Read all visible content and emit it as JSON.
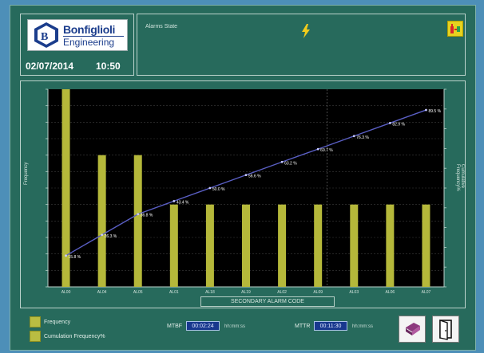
{
  "header": {
    "brand_name": "Bonfiglioli",
    "brand_sub": "Engineering",
    "date": "02/07/2014",
    "time": "10:50",
    "alarm_label": "Alarms State"
  },
  "chart_data": {
    "type": "bar",
    "title": "",
    "xlabel": "SECONDARY ALARM CODE",
    "ylabel": "Frequency",
    "y2label": "Cumulative Frequency%",
    "categories": [
      "AL00",
      "AL04",
      "AL05",
      "AL01",
      "AL18",
      "AL19",
      "AL02",
      "AL09",
      "AL03",
      "AL06",
      "AL07"
    ],
    "values": [
      12,
      8,
      8,
      5,
      5,
      5,
      5,
      5,
      5,
      5,
      5
    ],
    "ylim": [
      0,
      12
    ],
    "y2lim": [
      0,
      100
    ],
    "cumulative_percent": [
      15.8,
      26.3,
      36.8,
      43.4,
      50.0,
      56.6,
      63.2,
      69.7,
      76.3,
      82.9,
      89.5
    ],
    "cumulative_labels": [
      "15.8 %",
      "26.3 %",
      "36.8 %",
      "43.4 %",
      "50.0 %",
      "56.6 %",
      "63.2 %",
      "69.7 %",
      "76.3 %",
      "82.9 %",
      "89.5 %"
    ],
    "bar_color": "#b5b83a",
    "line_color": "#5a5fc4",
    "grid": true,
    "legend": "bottom-left"
  },
  "legend": {
    "frequency": "Frequency",
    "cumulative": "Cumulation Frequency%"
  },
  "kpi": {
    "mtbf_label": "MTBF",
    "mtbf_value": "00:02:24",
    "mtbf_unit": "hh:mm:ss",
    "mttr_label": "MTTR",
    "mttr_value": "00:11:30",
    "mttr_unit": "hh:mm:ss"
  },
  "icons": {
    "alarm": "lightning-icon",
    "device": "device-status-icon",
    "manual": "book-icon",
    "exit": "exit-door-icon"
  }
}
